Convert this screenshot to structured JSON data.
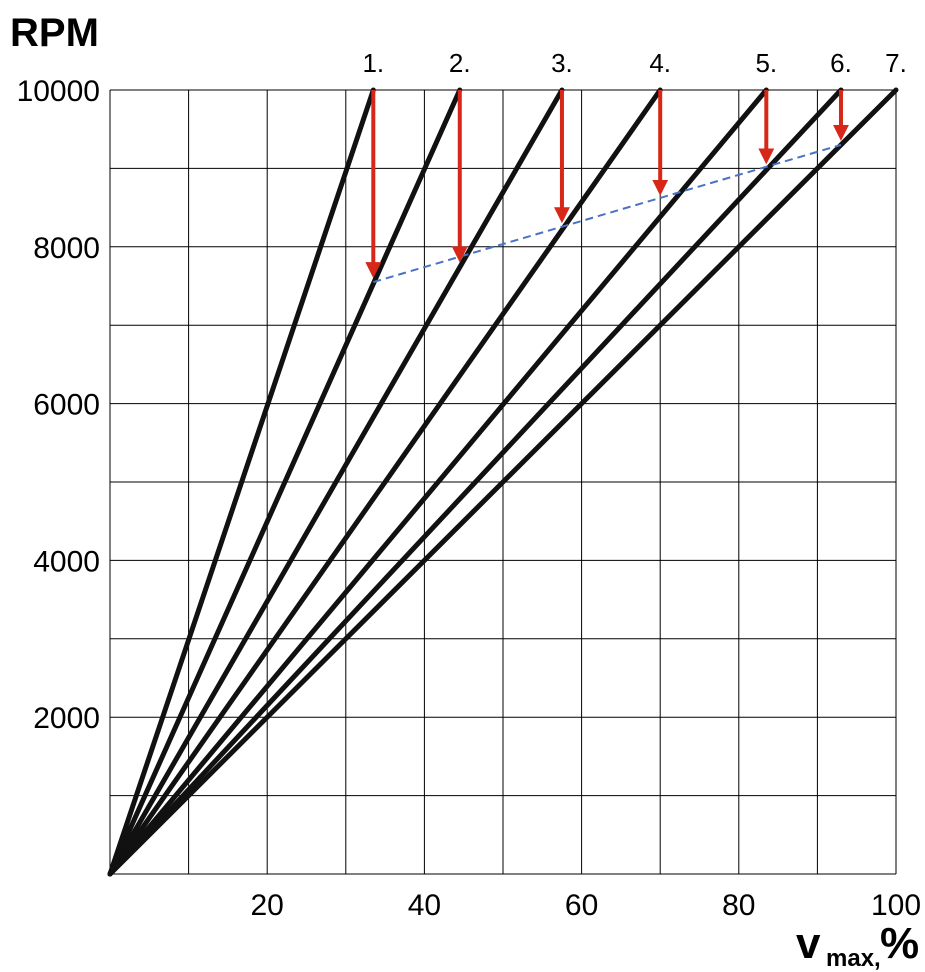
{
  "chart_data": {
    "type": "line",
    "title": "",
    "ylabel": "RPM",
    "xlabel": {
      "main": "v",
      "sub": "max,",
      "unit": "%"
    },
    "xlim": [
      0,
      100
    ],
    "ylim": [
      0,
      10000
    ],
    "x_ticks": [
      20,
      40,
      60,
      80,
      100
    ],
    "y_ticks": [
      2000,
      4000,
      6000,
      8000,
      10000
    ],
    "grid": true,
    "series": [
      {
        "name": "1.",
        "x": [
          0,
          33.5
        ],
        "y": [
          0,
          10000
        ]
      },
      {
        "name": "2.",
        "x": [
          0,
          44.5
        ],
        "y": [
          0,
          10000
        ]
      },
      {
        "name": "3.",
        "x": [
          0,
          57.5
        ],
        "y": [
          0,
          10000
        ]
      },
      {
        "name": "4.",
        "x": [
          0,
          70
        ],
        "y": [
          0,
          10000
        ]
      },
      {
        "name": "5.",
        "x": [
          0,
          83.5
        ],
        "y": [
          0,
          10000
        ]
      },
      {
        "name": "6.",
        "x": [
          0,
          93
        ],
        "y": [
          0,
          10000
        ]
      },
      {
        "name": "7.",
        "x": [
          0,
          100
        ],
        "y": [
          0,
          10000
        ]
      }
    ],
    "shift_drops": [
      {
        "x": 33.5,
        "from": 10000,
        "to": 7550
      },
      {
        "x": 44.5,
        "from": 10000,
        "to": 7750
      },
      {
        "x": 57.5,
        "from": 10000,
        "to": 8250
      },
      {
        "x": 70,
        "from": 10000,
        "to": 8600
      },
      {
        "x": 83.5,
        "from": 10000,
        "to": 9000
      },
      {
        "x": 93,
        "from": 10000,
        "to": 9300
      }
    ],
    "shift_trend": {
      "x": [
        33.5,
        93
      ],
      "y": [
        7550,
        9300
      ]
    },
    "colors": {
      "lines": "#111111",
      "arrows": "#d62718",
      "trend": "#4a72c4",
      "grid": "#000000"
    }
  }
}
